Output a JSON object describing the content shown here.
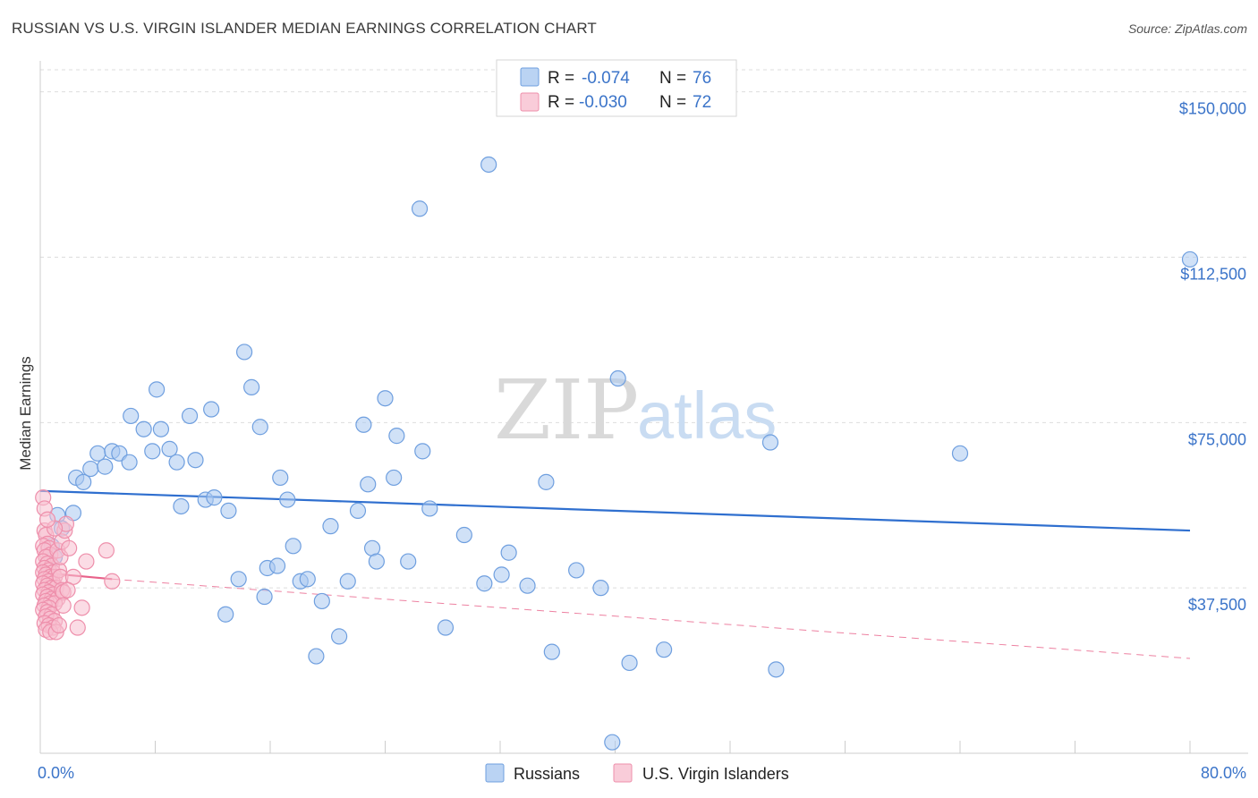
{
  "header": {
    "title": "RUSSIAN VS U.S. VIRGIN ISLANDER MEDIAN EARNINGS CORRELATION CHART",
    "source": "Source: ZipAtlas.com"
  },
  "watermark": {
    "zip": "ZIP",
    "atlas": "atlas"
  },
  "legend": {
    "rows": [
      {
        "r_label": "R =",
        "r_value": "-0.074",
        "n_label": "N =",
        "n_value": "76",
        "color": "#a9c8f0",
        "stroke": "#6f9fdf"
      },
      {
        "r_label": "R =",
        "r_value": "-0.030",
        "n_label": "N =",
        "n_value": "72",
        "color": "#f7bfd0",
        "stroke": "#ee8fab"
      }
    ]
  },
  "colors": {
    "russians_fill": "#a9c8f0",
    "russians_stroke": "#6f9fdf",
    "russians_line": "#2f6fcf",
    "usvi_fill": "#f7bfd0",
    "usvi_stroke": "#ee8fab",
    "usvi_line": "#e8628a",
    "grid": "#dddddd",
    "axis": "#cccccc"
  },
  "chart_data": {
    "type": "scatter",
    "title": "RUSSIAN VS U.S. VIRGIN ISLANDER MEDIAN EARNINGS CORRELATION CHART",
    "xlabel": "",
    "ylabel": "Median Earnings",
    "xlim": [
      0,
      80
    ],
    "ylim": [
      0,
      155000
    ],
    "x_tick_labels": [
      "0.0%",
      "80.0%"
    ],
    "y_ticks": [
      37500,
      75000,
      112500,
      150000
    ],
    "y_tick_labels": [
      "$37,500",
      "$75,000",
      "$112,500",
      "$150,000"
    ],
    "grid": true,
    "legend_position": "top-center",
    "series": [
      {
        "name": "Russians",
        "trend": {
          "x": [
            0,
            80
          ],
          "y": [
            59500,
            50500
          ]
        },
        "points": [
          [
            1.2,
            54000
          ],
          [
            1.5,
            51000
          ],
          [
            2.3,
            54500
          ],
          [
            2.5,
            62500
          ],
          [
            3.0,
            61500
          ],
          [
            3.5,
            64500
          ],
          [
            4.0,
            68000
          ],
          [
            4.5,
            65000
          ],
          [
            5.0,
            68500
          ],
          [
            5.5,
            68000
          ],
          [
            6.2,
            66000
          ],
          [
            6.3,
            76500
          ],
          [
            7.2,
            73500
          ],
          [
            7.8,
            68500
          ],
          [
            8.1,
            82500
          ],
          [
            8.4,
            73500
          ],
          [
            9.0,
            69000
          ],
          [
            9.5,
            66000
          ],
          [
            9.8,
            56000
          ],
          [
            10.4,
            76500
          ],
          [
            10.8,
            66500
          ],
          [
            11.5,
            57500
          ],
          [
            11.9,
            78000
          ],
          [
            12.1,
            58000
          ],
          [
            12.9,
            31500
          ],
          [
            13.1,
            55000
          ],
          [
            13.8,
            39500
          ],
          [
            14.2,
            91000
          ],
          [
            14.7,
            83000
          ],
          [
            15.3,
            74000
          ],
          [
            15.6,
            35500
          ],
          [
            15.8,
            42000
          ],
          [
            16.5,
            42500
          ],
          [
            16.7,
            62500
          ],
          [
            17.2,
            57500
          ],
          [
            17.6,
            47000
          ],
          [
            18.1,
            39000
          ],
          [
            18.6,
            39500
          ],
          [
            19.2,
            22000
          ],
          [
            19.6,
            34500
          ],
          [
            20.2,
            51500
          ],
          [
            20.8,
            26500
          ],
          [
            21.4,
            39000
          ],
          [
            22.1,
            55000
          ],
          [
            22.5,
            74500
          ],
          [
            22.8,
            61000
          ],
          [
            23.1,
            46500
          ],
          [
            23.4,
            43500
          ],
          [
            24.0,
            80500
          ],
          [
            24.6,
            62500
          ],
          [
            24.8,
            72000
          ],
          [
            25.6,
            43500
          ],
          [
            26.4,
            123500
          ],
          [
            26.6,
            68500
          ],
          [
            27.1,
            55500
          ],
          [
            28.2,
            28500
          ],
          [
            29.5,
            49500
          ],
          [
            30.9,
            38500
          ],
          [
            31.2,
            133500
          ],
          [
            32.1,
            40500
          ],
          [
            32.6,
            45500
          ],
          [
            33.9,
            38000
          ],
          [
            35.2,
            61500
          ],
          [
            35.6,
            23000
          ],
          [
            37.3,
            41500
          ],
          [
            39.0,
            37500
          ],
          [
            39.8,
            2500
          ],
          [
            40.2,
            85000
          ],
          [
            41.0,
            20500
          ],
          [
            43.4,
            23500
          ],
          [
            50.8,
            70500
          ],
          [
            51.2,
            19000
          ],
          [
            64.0,
            68000
          ],
          [
            80.0,
            112000
          ],
          [
            0.8,
            47000
          ],
          [
            1.0,
            44500
          ]
        ]
      },
      {
        "name": "U.S. Virgin Islanders",
        "trend": {
          "x": [
            0,
            5
          ],
          "y": [
            41000,
            39500
          ]
        },
        "trend_extension": {
          "x": [
            5,
            80
          ],
          "y": [
            39500,
            21500
          ]
        },
        "points": [
          [
            0.2,
            58000
          ],
          [
            0.3,
            55500
          ],
          [
            0.3,
            50500
          ],
          [
            0.4,
            49500
          ],
          [
            0.5,
            47500
          ],
          [
            0.2,
            47000
          ],
          [
            0.6,
            46500
          ],
          [
            0.3,
            46000
          ],
          [
            0.7,
            45000
          ],
          [
            0.4,
            44500
          ],
          [
            0.2,
            43500
          ],
          [
            0.5,
            43000
          ],
          [
            0.8,
            42500
          ],
          [
            0.3,
            42000
          ],
          [
            0.6,
            41500
          ],
          [
            0.9,
            41000
          ],
          [
            0.2,
            41000
          ],
          [
            0.4,
            40500
          ],
          [
            0.7,
            40000
          ],
          [
            1.0,
            40000
          ],
          [
            0.3,
            39500
          ],
          [
            0.6,
            39000
          ],
          [
            0.9,
            38500
          ],
          [
            0.2,
            38500
          ],
          [
            0.5,
            38000
          ],
          [
            0.8,
            37500
          ],
          [
            1.1,
            37500
          ],
          [
            0.3,
            37000
          ],
          [
            0.6,
            36500
          ],
          [
            0.9,
            36000
          ],
          [
            0.2,
            36000
          ],
          [
            0.5,
            35500
          ],
          [
            0.8,
            35000
          ],
          [
            1.2,
            35000
          ],
          [
            0.4,
            34500
          ],
          [
            0.7,
            34000
          ],
          [
            1.0,
            34000
          ],
          [
            0.3,
            33500
          ],
          [
            0.6,
            33000
          ],
          [
            0.2,
            32500
          ],
          [
            0.5,
            32000
          ],
          [
            0.8,
            31500
          ],
          [
            0.4,
            31000
          ],
          [
            0.7,
            30500
          ],
          [
            1.0,
            30000
          ],
          [
            0.3,
            29500
          ],
          [
            0.6,
            29000
          ],
          [
            0.9,
            28500
          ],
          [
            0.4,
            28000
          ],
          [
            0.7,
            27500
          ],
          [
            1.1,
            27500
          ],
          [
            1.3,
            41500
          ],
          [
            1.4,
            40000
          ],
          [
            1.5,
            37000
          ],
          [
            1.6,
            36500
          ],
          [
            1.2,
            46000
          ],
          [
            1.5,
            48000
          ],
          [
            1.7,
            50500
          ],
          [
            1.8,
            52000
          ],
          [
            1.4,
            44500
          ],
          [
            2.0,
            46500
          ],
          [
            2.3,
            40000
          ],
          [
            2.6,
            28500
          ],
          [
            2.9,
            33000
          ],
          [
            3.2,
            43500
          ],
          [
            4.6,
            46000
          ],
          [
            5.0,
            39000
          ],
          [
            1.0,
            51000
          ],
          [
            0.5,
            53000
          ],
          [
            1.3,
            29000
          ],
          [
            1.6,
            33500
          ],
          [
            1.9,
            37000
          ]
        ]
      }
    ]
  },
  "bottom_legend": {
    "items": [
      {
        "label": "Russians"
      },
      {
        "label": "U.S. Virgin Islanders"
      }
    ]
  }
}
